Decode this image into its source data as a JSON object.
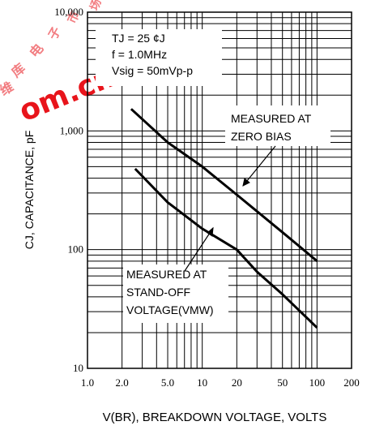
{
  "chart_data": {
    "type": "line",
    "xscale": "log",
    "yscale": "log",
    "xlim": [
      1,
      200
    ],
    "ylim": [
      10,
      10000
    ],
    "xlabel": "V(BR), BREAKDOWN VOLTAGE, VOLTS",
    "ylabel": "CJ, CAPACITANCE, pF",
    "x_ticks": [
      1,
      2,
      5,
      10,
      20,
      50,
      100,
      200
    ],
    "x_tick_labels": [
      "1.0",
      "2.0",
      "5.0",
      "10",
      "20",
      "50",
      "100",
      "200"
    ],
    "y_ticks": [
      10,
      100,
      1000,
      10000
    ],
    "y_tick_labels": [
      "10",
      "100",
      "1,000",
      "10,000"
    ],
    "grid": true,
    "conditions": [
      "TJ = 25  ¢J",
      "f = 1.0MHz",
      "Vsig = 50mVp-p"
    ],
    "series": [
      {
        "annotation": [
          "MEASURED AT",
          "ZERO BIAS"
        ],
        "x": [
          2.4,
          5,
          10,
          20,
          50,
          100
        ],
        "y": [
          1530,
          800,
          500,
          290,
          140,
          80
        ]
      },
      {
        "annotation": [
          "MEASURED AT",
          "STAND-OFF",
          "VOLTAGE(VMW)"
        ],
        "x": [
          2.6,
          5,
          10,
          20,
          30,
          50,
          100
        ],
        "y": [
          480,
          250,
          150,
          100,
          65,
          42,
          22
        ]
      }
    ]
  },
  "watermark": {
    "top_glyphs": [
      "维",
      "库",
      "电",
      "子",
      "市",
      "场"
    ],
    "text": "om.cn",
    "color": "#e8141b"
  }
}
